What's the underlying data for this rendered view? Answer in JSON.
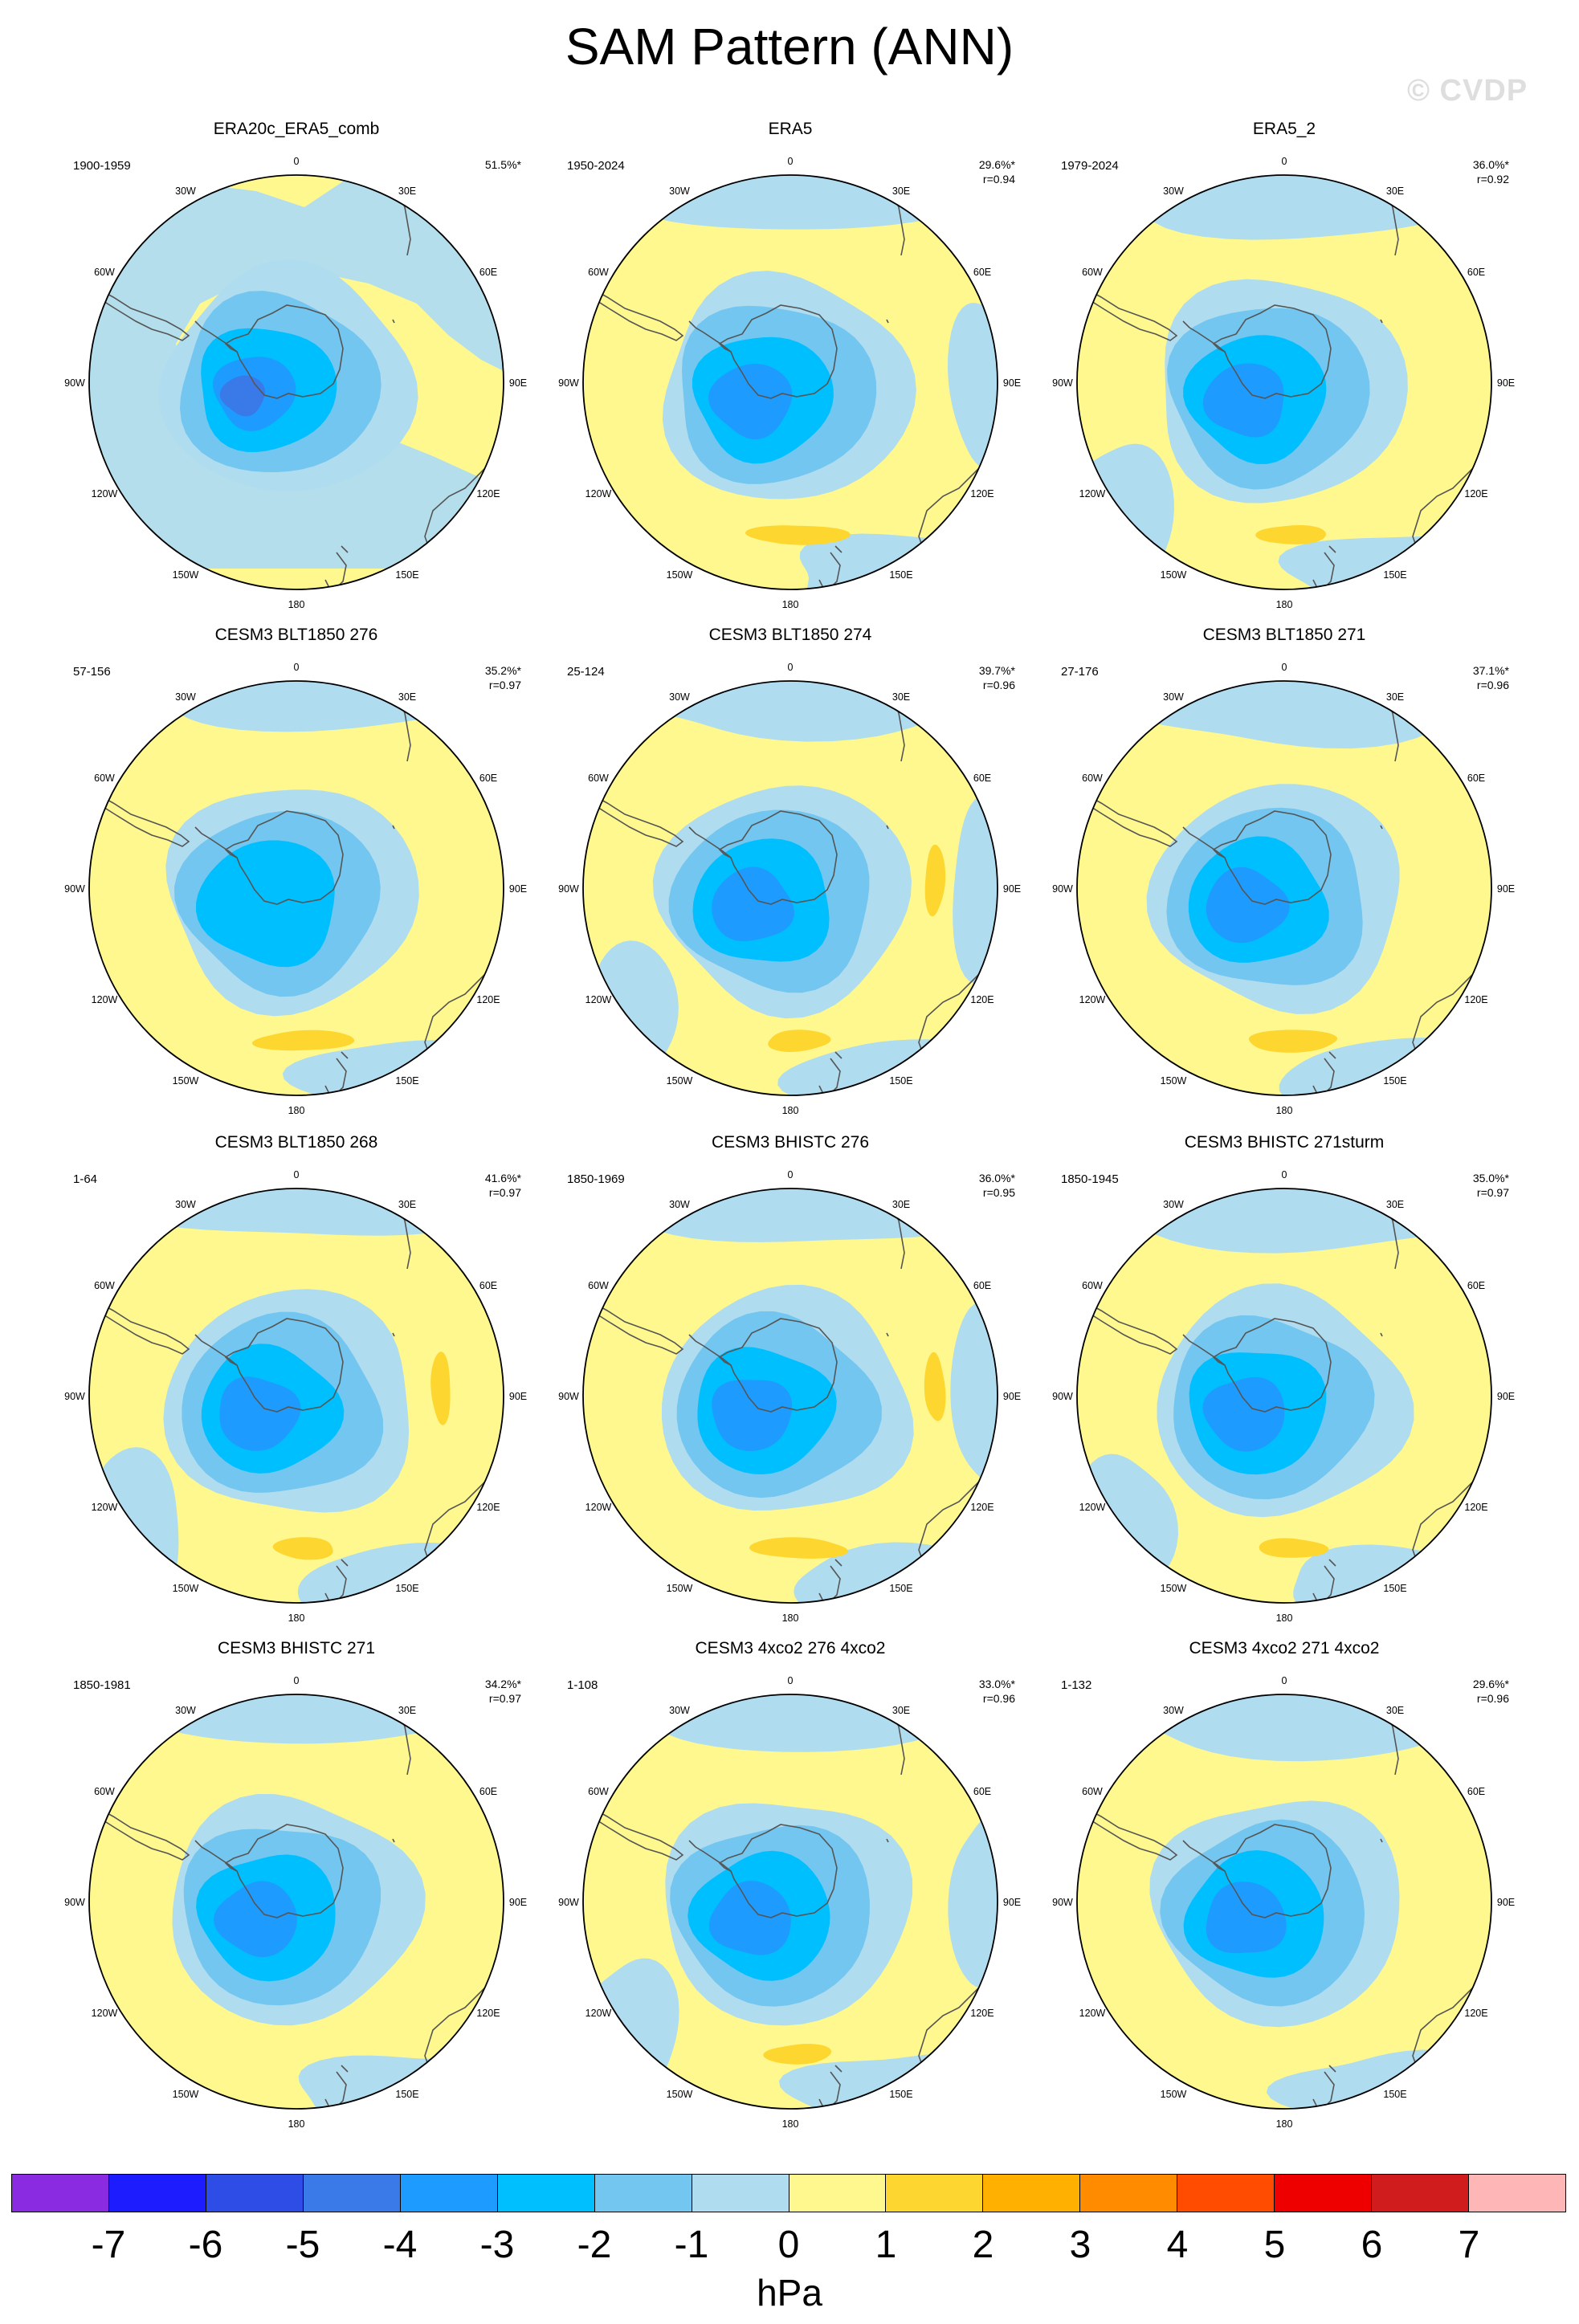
{
  "title": "SAM Pattern (ANN)",
  "watermark": "© CVDP",
  "lon_labels": [
    "0",
    "30E",
    "60E",
    "90E",
    "120E",
    "150E",
    "180",
    "150W",
    "120W",
    "90W",
    "60W",
    "30W"
  ],
  "colors": {
    "level_m7": "#8a2be2",
    "level_m6": "#1c1cff",
    "level_m5": "#2e4de6",
    "level_m4": "#3a7ae8",
    "level_m3": "#1e9bff",
    "level_m2": "#00bfff",
    "level_m1": "#73c6ef",
    "level_0": "#b0dcf0",
    "level_p0": "#fef88f",
    "level_p1": "#fdd630",
    "level_p2": "#ffb000",
    "level_p3": "#ff8c00",
    "level_p4": "#ff4c00",
    "level_p5": "#ee0000",
    "level_p6": "#d01c1c",
    "level_p7": "#ffb6b6",
    "coast": "#555555"
  },
  "colorbar": {
    "segments": [
      "#8a2be2",
      "#1c1cff",
      "#2e4de6",
      "#3a7ae8",
      "#1e9bff",
      "#00bfff",
      "#73c6ef",
      "#b0dcf0",
      "#fef88f",
      "#fdd630",
      "#ffb000",
      "#ff8c00",
      "#ff4c00",
      "#ee0000",
      "#d01c1c",
      "#ffb6b6"
    ],
    "ticks": [
      "-7",
      "-6",
      "-5",
      "-4",
      "-3",
      "-2",
      "-1",
      "0",
      "1",
      "2",
      "3",
      "4",
      "5",
      "6",
      "7"
    ],
    "units": "hPa"
  },
  "panels": [
    {
      "title": "ERA20c_ERA5_comb",
      "period": "1900-1959",
      "pct": "51.5%*",
      "r": "",
      "max_level": 4,
      "warm": 0
    },
    {
      "title": "ERA5",
      "period": "1950-2024",
      "pct": "29.6%*",
      "r": "r=0.94",
      "max_level": 3,
      "warm": 1
    },
    {
      "title": "ERA5_2",
      "period": "1979-2024",
      "pct": "36.0%*",
      "r": "r=0.92",
      "max_level": 3,
      "warm": 1
    },
    {
      "title": "CESM3 BLT1850 276",
      "period": "57-156",
      "pct": "35.2%*",
      "r": "r=0.97",
      "max_level": 2,
      "warm": 1
    },
    {
      "title": "CESM3 BLT1850 274",
      "period": "25-124",
      "pct": "39.7%*",
      "r": "r=0.96",
      "max_level": 3,
      "warm": 2
    },
    {
      "title": "CESM3 BLT1850 271",
      "period": "27-176",
      "pct": "37.1%*",
      "r": "r=0.96",
      "max_level": 3,
      "warm": 1
    },
    {
      "title": "CESM3 BLT1850 268",
      "period": "1-64",
      "pct": "41.6%*",
      "r": "r=0.97",
      "max_level": 3,
      "warm": 2
    },
    {
      "title": "CESM3 BHISTC 276",
      "period": "1850-1969",
      "pct": "36.0%*",
      "r": "r=0.95",
      "max_level": 3,
      "warm": 2
    },
    {
      "title": "CESM3 BHISTC 271sturm",
      "period": "1850-1945",
      "pct": "35.0%*",
      "r": "r=0.97",
      "max_level": 3,
      "warm": 1
    },
    {
      "title": "CESM3 BHISTC 271",
      "period": "1850-1981",
      "pct": "34.2%*",
      "r": "r=0.97",
      "max_level": 3,
      "warm": 0
    },
    {
      "title": "CESM3 4xco2 276 4xco2",
      "period": "1-108",
      "pct": "33.0%*",
      "r": "r=0.96",
      "max_level": 3,
      "warm": 1
    },
    {
      "title": "CESM3 4xco2 271 4xco2",
      "period": "1-132",
      "pct": "29.6%*",
      "r": "r=0.96",
      "max_level": 3,
      "warm": 0
    }
  ]
}
